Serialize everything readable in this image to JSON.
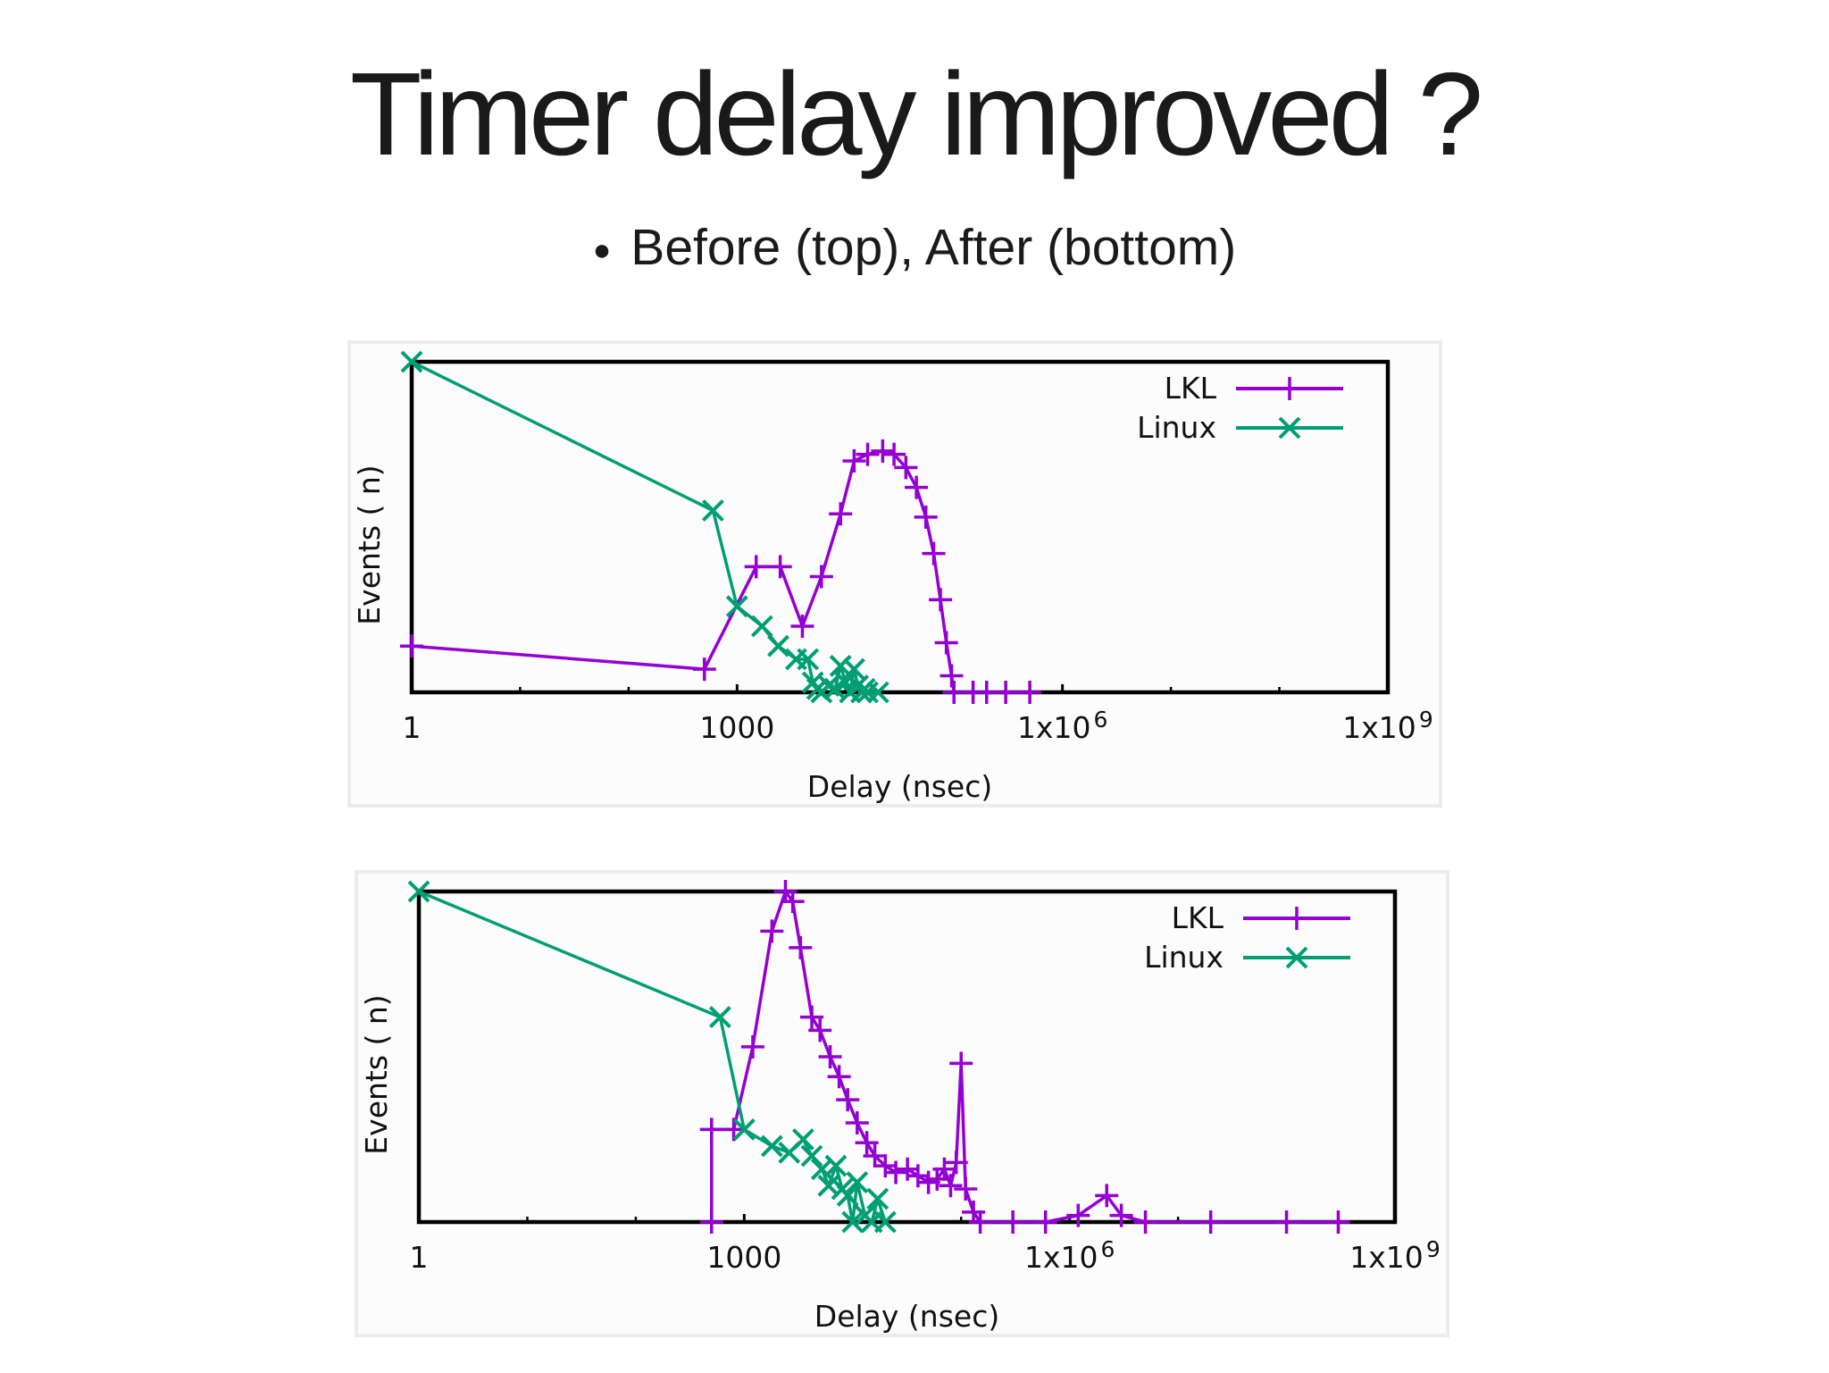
{
  "slide": {
    "title": "Timer delay improved ?",
    "bullet": "Before (top), After (bottom)"
  },
  "colors": {
    "lkl": "#9400d3",
    "linux": "#009e73",
    "frame": "#000000"
  },
  "chart_data": [
    {
      "type": "line",
      "position": "top",
      "xlabel": "Delay (nsec)",
      "ylabel": "Events ( n)",
      "x_scale": "log",
      "xlim": [
        1,
        1000000000
      ],
      "x_ticks": [
        {
          "value": 1,
          "base": "1",
          "exp": ""
        },
        {
          "value": 1000,
          "base": "1000",
          "exp": ""
        },
        {
          "value": 1000000,
          "base": "1x10",
          "exp": "6"
        },
        {
          "value": 1000000000,
          "base": "1x10",
          "exp": "9"
        }
      ],
      "ylim": [
        0,
        100
      ],
      "y_tick_labels": false,
      "grid": false,
      "legend": "top-right",
      "series": [
        {
          "name": "LKL",
          "marker": "plus",
          "color": "#9400d3",
          "points": [
            [
              1,
              14
            ],
            [
              500,
              7
            ],
            [
              1500,
              38
            ],
            [
              2500,
              38
            ],
            [
              4000,
              20
            ],
            [
              6000,
              35
            ],
            [
              9000,
              54
            ],
            [
              12000,
              70
            ],
            [
              16000,
              72
            ],
            [
              22000,
              73
            ],
            [
              28000,
              72
            ],
            [
              36000,
              68
            ],
            [
              45000,
              62
            ],
            [
              55000,
              53
            ],
            [
              65000,
              42
            ],
            [
              75000,
              28
            ],
            [
              85000,
              15
            ],
            [
              95000,
              5
            ],
            [
              100000,
              0
            ],
            [
              150000,
              0
            ],
            [
              200000,
              0
            ],
            [
              300000,
              0
            ],
            [
              500000,
              0
            ]
          ]
        },
        {
          "name": "Linux",
          "marker": "cross",
          "color": "#009e73",
          "points": [
            [
              1,
              100
            ],
            [
              600,
              55
            ],
            [
              1000,
              26
            ],
            [
              1700,
              20
            ],
            [
              2400,
              14
            ],
            [
              3500,
              10
            ],
            [
              4500,
              10
            ],
            [
              5000,
              3
            ],
            [
              5500,
              1
            ],
            [
              6000,
              0
            ],
            [
              7000,
              2
            ],
            [
              8000,
              1
            ],
            [
              9000,
              8
            ],
            [
              10000,
              3
            ],
            [
              11000,
              0
            ],
            [
              12000,
              7
            ],
            [
              13000,
              2
            ],
            [
              14000,
              0
            ],
            [
              15000,
              1
            ],
            [
              16000,
              0
            ],
            [
              20000,
              0
            ]
          ]
        }
      ]
    },
    {
      "type": "line",
      "position": "bottom",
      "xlabel": "Delay (nsec)",
      "ylabel": "Events ( n)",
      "x_scale": "log",
      "xlim": [
        1,
        1000000000
      ],
      "x_ticks": [
        {
          "value": 1,
          "base": "1",
          "exp": ""
        },
        {
          "value": 1000,
          "base": "1000",
          "exp": ""
        },
        {
          "value": 1000000,
          "base": "1x10",
          "exp": "6"
        },
        {
          "value": 1000000000,
          "base": "1x10",
          "exp": "9"
        }
      ],
      "ylim": [
        0,
        100
      ],
      "y_tick_labels": false,
      "grid": false,
      "legend": "top-right",
      "series": [
        {
          "name": "LKL",
          "marker": "plus",
          "color": "#9400d3",
          "points": [
            [
              500,
              0
            ],
            [
              500,
              28
            ],
            [
              800,
              28
            ],
            [
              1200,
              53
            ],
            [
              1800,
              88
            ],
            [
              2400,
              100
            ],
            [
              2800,
              97
            ],
            [
              3300,
              83
            ],
            [
              4200,
              62
            ],
            [
              5000,
              58
            ],
            [
              6200,
              50
            ],
            [
              7500,
              44
            ],
            [
              9000,
              37
            ],
            [
              11000,
              30
            ],
            [
              13500,
              24
            ],
            [
              16000,
              20
            ],
            [
              20000,
              17
            ],
            [
              25000,
              15
            ],
            [
              32000,
              16
            ],
            [
              40000,
              14
            ],
            [
              50000,
              12
            ],
            [
              60000,
              13
            ],
            [
              70000,
              16
            ],
            [
              80000,
              11
            ],
            [
              90000,
              18
            ],
            [
              100000,
              48
            ],
            [
              110000,
              10
            ],
            [
              130000,
              3
            ],
            [
              150000,
              0
            ],
            [
              300000,
              0
            ],
            [
              600000,
              0
            ],
            [
              1200000,
              2
            ],
            [
              2200000,
              8
            ],
            [
              3000000,
              2
            ],
            [
              5000000,
              0
            ],
            [
              20000000,
              0
            ],
            [
              100000000,
              0
            ],
            [
              300000000,
              0
            ]
          ]
        },
        {
          "name": "Linux",
          "marker": "cross",
          "color": "#009e73",
          "points": [
            [
              1,
              100
            ],
            [
              600,
              62
            ],
            [
              1000,
              28
            ],
            [
              1800,
              23
            ],
            [
              2600,
              21
            ],
            [
              3500,
              25
            ],
            [
              4200,
              20
            ],
            [
              5200,
              16
            ],
            [
              6000,
              11
            ],
            [
              7000,
              17
            ],
            [
              8000,
              10
            ],
            [
              9000,
              8
            ],
            [
              10000,
              0
            ],
            [
              11000,
              12
            ],
            [
              13000,
              2
            ],
            [
              15000,
              0
            ],
            [
              17000,
              7
            ],
            [
              20000,
              0
            ]
          ]
        }
      ]
    }
  ]
}
